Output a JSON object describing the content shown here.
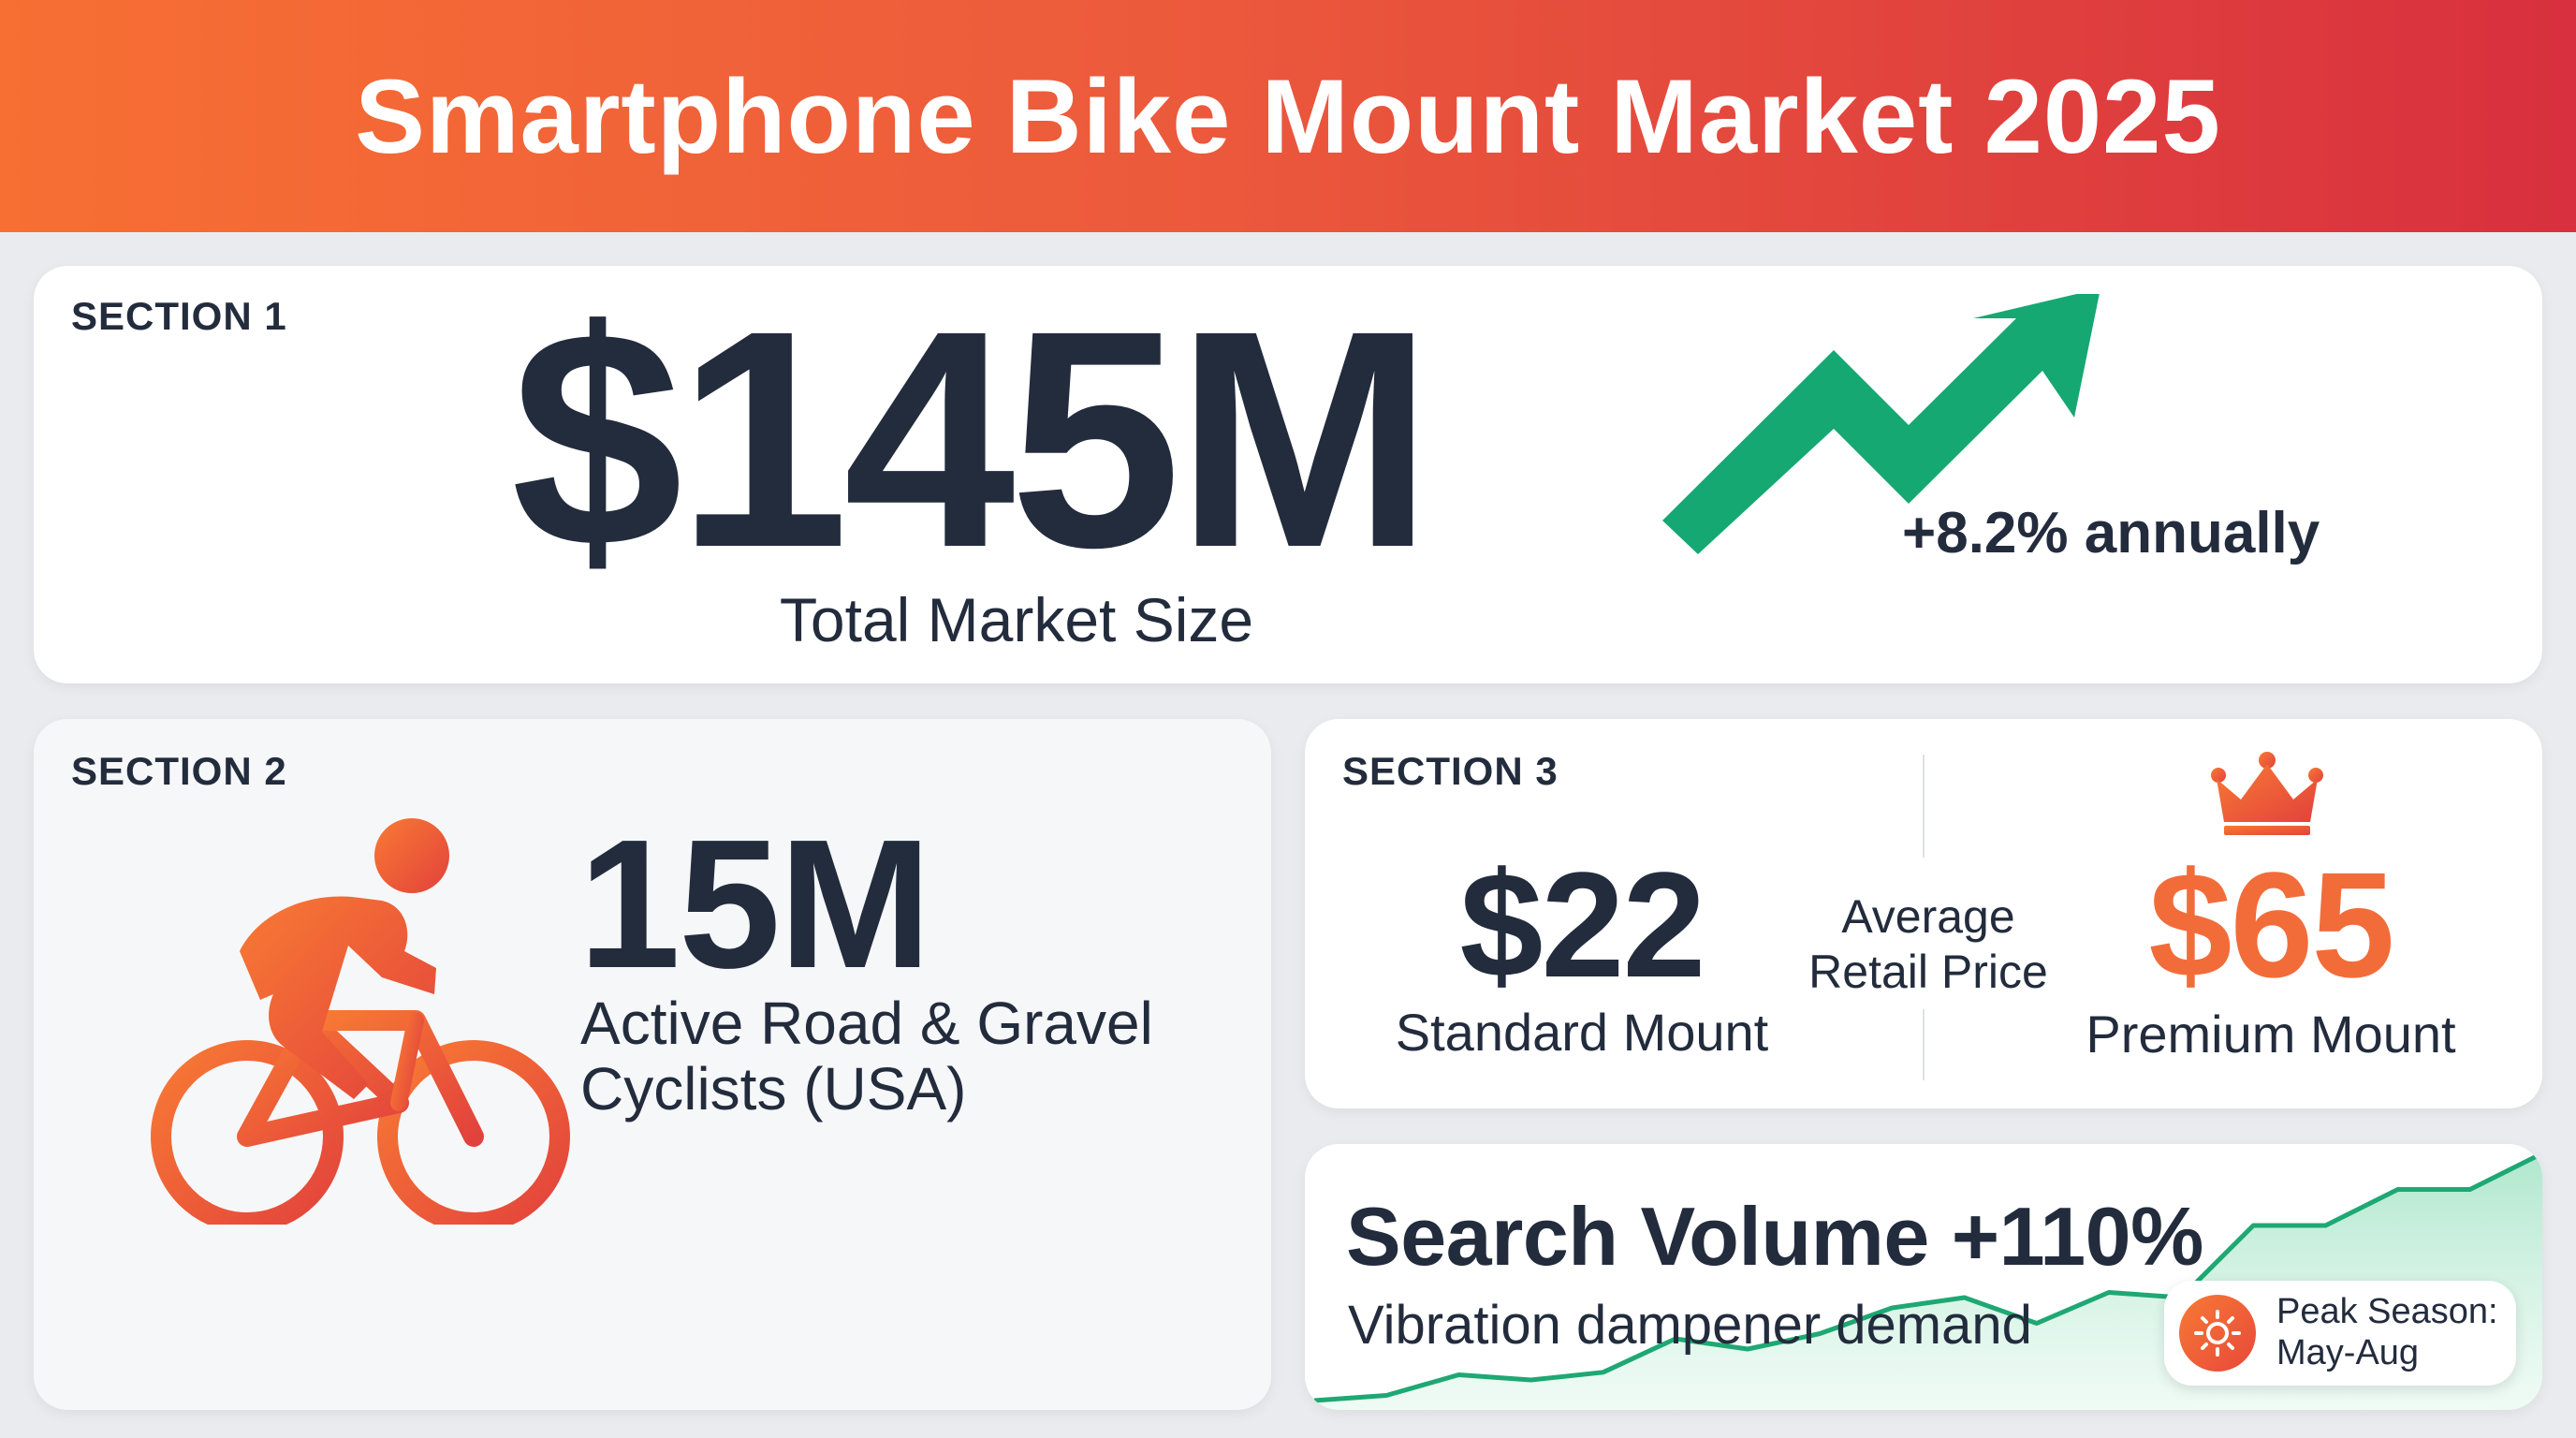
{
  "header": {
    "title": "Smartphone Bike Mount Market 2025"
  },
  "section1": {
    "label": "SECTION 1",
    "value": "$145M",
    "caption": "Total Market Size",
    "growth": "+8.2% annually",
    "icon": "trend-up-arrow-icon",
    "accent": "#16a872"
  },
  "section2": {
    "label": "SECTION 2",
    "value": "15M",
    "caption": "Active Road & Gravel Cyclists (USA)",
    "icon": "cyclist-icon"
  },
  "section3": {
    "label": "SECTION 3",
    "standard": {
      "price": "$22",
      "caption": "Standard Mount"
    },
    "average_label": "Average Retail Price",
    "premium": {
      "price": "$65",
      "caption": "Premium Mount",
      "icon": "crown-icon"
    }
  },
  "section4": {
    "title": "Search Volume +110%",
    "subtitle": "Vibration dampener demand",
    "badge": {
      "icon": "sun-icon",
      "text": "Peak Season: May-Aug"
    },
    "trend_values": [
      0,
      2,
      10,
      8,
      11,
      24,
      20,
      26,
      36,
      40,
      30,
      42,
      40,
      68,
      68,
      82,
      82,
      96
    ]
  },
  "colors": {
    "header_start": "#f76f33",
    "header_end": "#d8303e",
    "text": "#232c3d",
    "accent_orange": "#f26c3a",
    "accent_red": "#e03a3e",
    "accent_green": "#16a872"
  }
}
